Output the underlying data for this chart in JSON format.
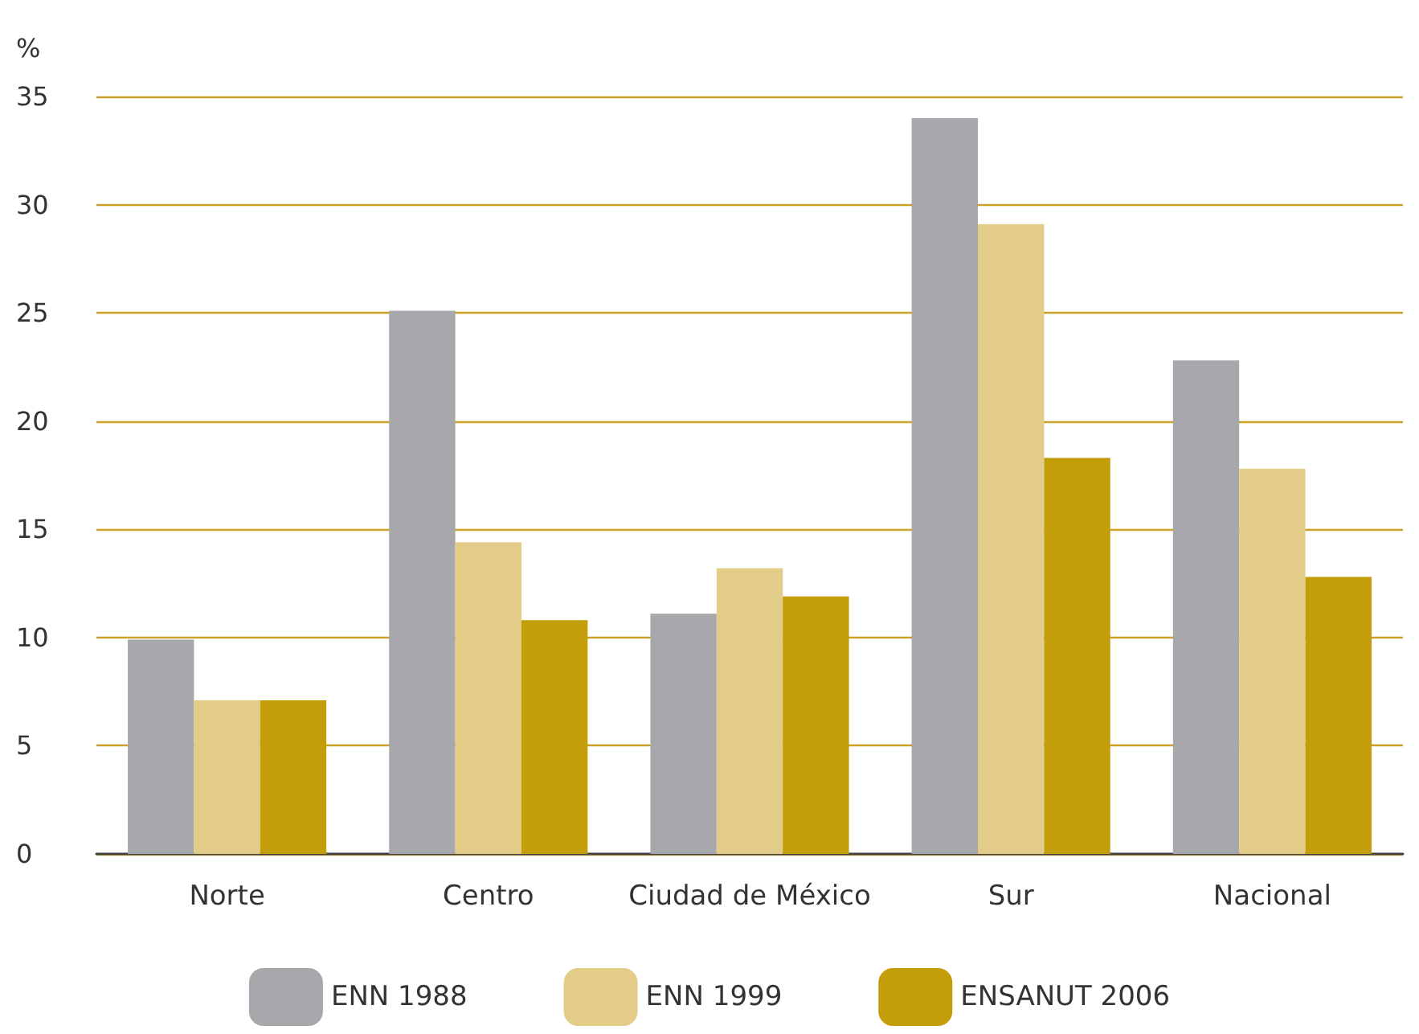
{
  "chart_data": {
    "type": "bar",
    "ylabel": "%",
    "categories": [
      "Norte",
      "Centro",
      "Ciudad de México",
      "Sur",
      "Nacional"
    ],
    "series": [
      {
        "name": "ENN 1988",
        "color": "#a7a8ab",
        "values": [
          9.9,
          25.1,
          11.1,
          34.0,
          22.8
        ]
      },
      {
        "name": "ENN 1999",
        "color": "#e3cc87",
        "values": [
          7.1,
          14.4,
          13.2,
          29.1,
          17.8
        ]
      },
      {
        "name": "ENSANUT 2006",
        "color": "#c49d0a",
        "values": [
          7.1,
          10.8,
          11.9,
          18.3,
          12.8
        ]
      }
    ],
    "ylim": [
      0,
      35
    ],
    "yticks": [
      0,
      5,
      10,
      15,
      20,
      25,
      30,
      35
    ],
    "grid": "y",
    "legend": "bottom"
  }
}
